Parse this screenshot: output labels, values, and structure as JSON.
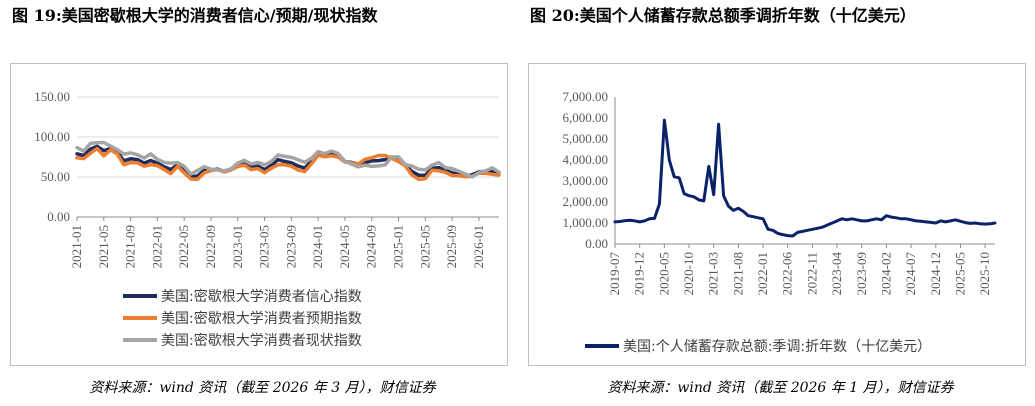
{
  "left": {
    "title_label": "图 19:",
    "title_text": "美国密歇根大学的消费者信心/预期/现状指数",
    "source": "资料来源：wind 资讯（截至 2026 年 3 月），财信证券",
    "chart_data": {
      "type": "line",
      "ylim": [
        0,
        150
      ],
      "yticks": [
        "0.00",
        "50.00",
        "100.00",
        "150.00"
      ],
      "ytick_values": [
        0,
        50,
        100,
        150
      ],
      "grid": true,
      "legend_position": "bottom",
      "x_tick_labels": [
        "2021-01",
        "2021-05",
        "2021-09",
        "2022-01",
        "2022-05",
        "2022-09",
        "2023-01",
        "2023-05",
        "2023-09",
        "2024-01",
        "2024-05",
        "2024-09",
        "2025-01",
        "2025-05",
        "2025-09",
        "2026-01"
      ],
      "x_tick_step": 4,
      "series": [
        {
          "name": "美国:密歇根大学消费者信心指数",
          "color": "#1f2d5c",
          "values": [
            79,
            76.8,
            84.9,
            88.3,
            82.9,
            85.5,
            81.2,
            70.3,
            72.8,
            71.7,
            67.4,
            70.6,
            67.2,
            62.8,
            59.4,
            65.2,
            58.4,
            50,
            51.5,
            58.2,
            58.6,
            59.9,
            56.8,
            59.8,
            64.9,
            67,
            62,
            63.5,
            59.2,
            64.4,
            71.6,
            69.4,
            67.9,
            63.8,
            61.3,
            69.7,
            79,
            76.9,
            79.4,
            77.2,
            69.1,
            68.2,
            66.4,
            67.9,
            70.1,
            70.5,
            71.8,
            74,
            71.7,
            64.7,
            57,
            52.2,
            52.2,
            60.7,
            61.7,
            58.2,
            55.1,
            53.6,
            51,
            52.9,
            56.4,
            57.3,
            56.5,
            55.5
          ]
        },
        {
          "name": "美国:密歇根大学消费者预期指数",
          "color": "#ed7d31",
          "values": [
            74,
            73,
            79.7,
            85.5,
            76.5,
            83.8,
            79,
            65.1,
            68.1,
            67.9,
            63.5,
            65.4,
            64.1,
            59.4,
            54.3,
            63.3,
            55.2,
            47.5,
            47.3,
            55.2,
            58,
            59.2,
            56.2,
            59,
            63.3,
            64.7,
            59.2,
            60.5,
            55.4,
            61,
            65.3,
            65.3,
            63.5,
            58.7,
            56.8,
            66.4,
            77.1,
            75.2,
            76.5,
            74.9,
            68.8,
            67.6,
            66.1,
            72.1,
            74.1,
            76.9,
            76.9,
            73.3,
            69.3,
            64,
            52.6,
            47.3,
            47.9,
            58.4,
            57.7,
            55.9,
            51.7,
            51.7,
            50.3,
            51,
            54.6,
            54.6,
            53.4,
            52.2
          ]
        },
        {
          "name": "美国:密歇根大学消费者现状指数",
          "color": "#a5a5a5",
          "values": [
            86.7,
            82.3,
            92,
            92.9,
            93.1,
            88.6,
            84.5,
            78.5,
            80.1,
            77.9,
            73.6,
            78.9,
            72,
            68.2,
            67.2,
            68.1,
            63.3,
            53.8,
            58.1,
            62.9,
            59.7,
            58.8,
            57.7,
            60.2,
            67.5,
            70.7,
            66.3,
            68.2,
            65.2,
            69.4,
            77.4,
            75.7,
            74.5,
            71.6,
            68.4,
            73.3,
            81.9,
            79.4,
            82.5,
            79.4,
            69.6,
            66.1,
            62.5,
            64.9,
            63.3,
            63.9,
            65.1,
            75.1,
            75.1,
            65.7,
            63.8,
            59.8,
            58.9,
            64.8,
            68.1,
            61.7,
            60.4,
            57.3,
            53.6,
            50.1,
            55.6,
            57.8,
            61.5,
            56
          ]
        }
      ]
    }
  },
  "right": {
    "title_label": "图 20:",
    "title_text": "美国个人储蓄存款总额季调折年数（十亿美元）",
    "source": "资料来源：wind 资讯（截至 2026 年 1 月），财信证券",
    "chart_data": {
      "type": "line",
      "ylim": [
        0,
        7000
      ],
      "yticks": [
        "0.00",
        "1,000.00",
        "2,000.00",
        "3,000.00",
        "4,000.00",
        "5,000.00",
        "6,000.00",
        "7,000.00"
      ],
      "ytick_values": [
        0,
        1000,
        2000,
        3000,
        4000,
        5000,
        6000,
        7000
      ],
      "grid": false,
      "legend_position": "bottom",
      "x_tick_labels": [
        "2019-07",
        "2019-12",
        "2020-05",
        "2020-10",
        "2021-03",
        "2021-08",
        "2022-01",
        "2022-06",
        "2022-11",
        "2023-04",
        "2023-09",
        "2024-02",
        "2024-07",
        "2024-12",
        "2025-05",
        "2025-10"
      ],
      "x_tick_step": 5,
      "series": [
        {
          "name": "美国:个人储蓄存款总额:季调:折年数（十亿美元）",
          "color": "#0c2268",
          "values": [
            1050,
            1070,
            1110,
            1130,
            1100,
            1050,
            1100,
            1200,
            1220,
            1900,
            5900,
            4000,
            3200,
            3150,
            2400,
            2300,
            2250,
            2100,
            2050,
            3700,
            2350,
            5700,
            2300,
            1800,
            1600,
            1700,
            1550,
            1350,
            1300,
            1250,
            1200,
            700,
            650,
            500,
            450,
            400,
            380,
            550,
            600,
            650,
            700,
            750,
            800,
            900,
            1000,
            1100,
            1200,
            1150,
            1200,
            1150,
            1100,
            1100,
            1150,
            1200,
            1150,
            1350,
            1280,
            1250,
            1200,
            1200,
            1150,
            1100,
            1080,
            1050,
            1030,
            1000,
            1100,
            1050,
            1100,
            1150,
            1080,
            1020,
            980,
            1000,
            960,
            950,
            960,
            1000
          ]
        }
      ]
    }
  }
}
